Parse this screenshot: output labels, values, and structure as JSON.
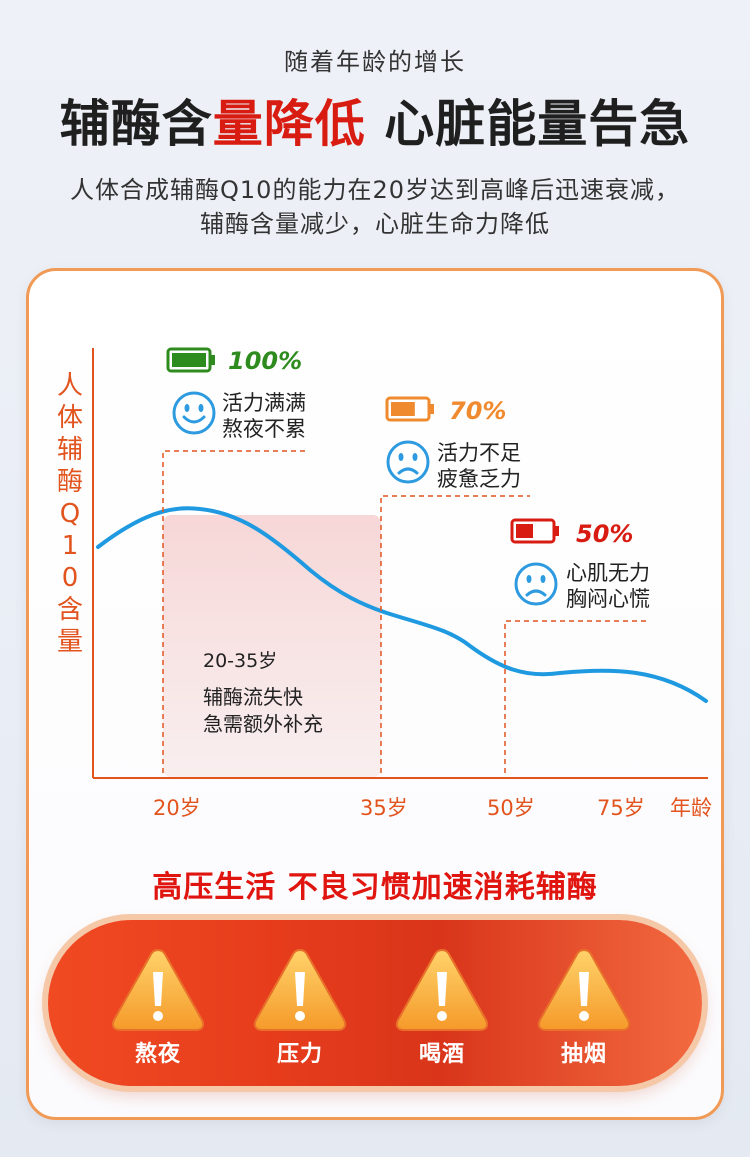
{
  "header": {
    "pre_title": "随着年龄的增长",
    "title_part1": "辅酶含",
    "title_part2": "量降低",
    "title_part3": "心脏能量告急",
    "desc_line1": "人体合成辅酶Q10的能力在20岁达到高峰后迅速衰减，",
    "desc_line2": "辅酶含量减少，心脏生命力降低"
  },
  "chart_data": {
    "type": "line",
    "ylabel": "人体辅酶Q10含量",
    "xlabel": "年龄",
    "x_ticks": [
      "20岁",
      "35岁",
      "50岁",
      "75岁"
    ],
    "highlight_range": "20-35岁",
    "highlight_note": [
      "辅酶流失快",
      "急需额外补充"
    ],
    "stages": [
      {
        "age": "20岁",
        "battery": "100%",
        "level": 1.0,
        "color": "#2e8b1e",
        "mood": "smile",
        "text": [
          "活力满满",
          "熬夜不累"
        ]
      },
      {
        "age": "35岁",
        "battery": "70%",
        "level": 0.7,
        "color": "#f08a2e",
        "mood": "sad",
        "text": [
          "活力不足",
          "疲惫乏力"
        ]
      },
      {
        "age": "50岁",
        "battery": "50%",
        "level": 0.5,
        "color": "#d81c12",
        "mood": "sad",
        "text": [
          "心肌无力",
          "胸闷心慌"
        ]
      }
    ],
    "line_color": "#1f9ae0",
    "grid": false
  },
  "sub_title": "高压生活  不良习惯加速消耗辅酶",
  "habits": [
    {
      "label": "熬夜",
      "icon": "warning-icon"
    },
    {
      "label": "压力",
      "icon": "warning-icon"
    },
    {
      "label": "喝酒",
      "icon": "warning-icon"
    },
    {
      "label": "抽烟",
      "icon": "warning-icon"
    }
  ],
  "colors": {
    "accent_red": "#d81c12",
    "accent_orange": "#e2541e",
    "curve_blue": "#1f9ae0",
    "face_blue": "#2e9be0"
  }
}
